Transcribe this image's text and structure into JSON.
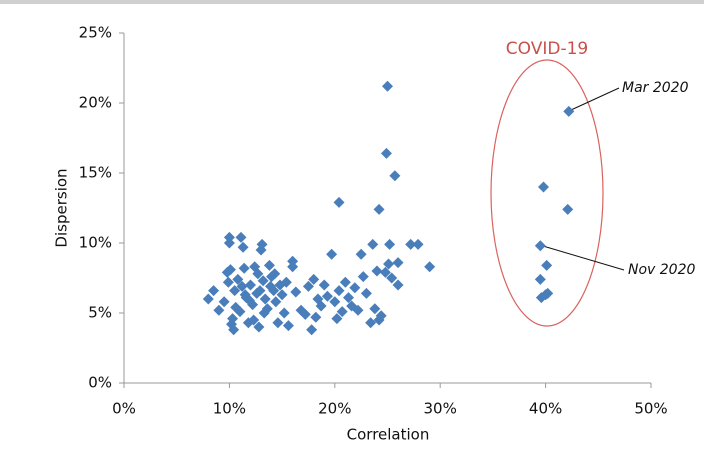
{
  "chart_data": {
    "type": "scatter",
    "x_label": "Correlation",
    "y_label": "Dispersion",
    "annotations": [
      "COVID-19",
      "Mar 2020",
      "Nov 2020"
    ],
    "color": "#4a7ebb",
    "xlim": [
      0,
      50
    ],
    "ylim": [
      0,
      25
    ],
    "xticks": [
      {
        "value": 0,
        "label": "0%"
      },
      {
        "value": 10,
        "label": "10%"
      },
      {
        "value": 20,
        "label": "20%"
      },
      {
        "value": 30,
        "label": "30%"
      },
      {
        "value": 40,
        "label": "40%"
      },
      {
        "value": 50,
        "label": "50%"
      }
    ],
    "yticks": [
      {
        "value": 0,
        "label": "0%"
      },
      {
        "value": 5,
        "label": "5%"
      },
      {
        "value": 10,
        "label": "10%"
      },
      {
        "value": 15,
        "label": "15%"
      },
      {
        "value": 20,
        "label": "20%"
      },
      {
        "value": 25,
        "label": "25%"
      }
    ],
    "x": [
      8,
      8.5,
      9,
      9.5,
      10,
      10,
      10.1,
      10.2,
      10.4,
      10.5,
      10.8,
      11,
      11.1,
      11.3,
      11.4,
      11.6,
      11.8,
      12,
      12.2,
      12.4,
      12.6,
      12.8,
      13,
      13.1,
      13.2,
      13.4,
      13.6,
      13.8,
      14,
      14.2,
      14.4,
      14.6,
      14.8,
      15,
      15.2,
      15.6,
      16,
      16,
      16.3,
      16.8,
      17.2,
      17.5,
      17.8,
      18,
      18.2,
      18.4,
      18.7,
      19,
      19.3,
      19.7,
      20,
      20.2,
      20.4,
      20.7,
      21,
      21.3,
      21.6,
      21.9,
      22.2,
      22.5,
      22.7,
      23,
      23.4,
      23.6,
      23.8,
      24,
      24.2,
      24.4,
      24.8,
      25.1,
      25.2,
      25.4,
      26,
      26,
      27.2,
      27.9,
      29,
      9.8,
      10.6,
      11.2,
      11.9,
      12.3,
      12.7,
      13.3,
      13.9,
      14.3,
      15.4,
      12.9,
      11.5,
      10.3,
      9.9,
      25,
      24.9,
      25.7,
      20.4,
      24.2,
      42.2,
      39.8,
      42.1,
      39.5,
      40.1,
      39.5,
      40,
      39.6,
      40.2
    ],
    "values": [
      6,
      6.6,
      5.2,
      5.8,
      10,
      10.4,
      8.1,
      4.2,
      3.8,
      6.6,
      7.4,
      5.1,
      10.4,
      9.7,
      8.2,
      6.1,
      4.3,
      7,
      5.6,
      8.3,
      6.4,
      4,
      9.5,
      9.9,
      7.3,
      6,
      5.3,
      8.4,
      7.6,
      6.6,
      5.8,
      4.3,
      7,
      6.3,
      5,
      4.1,
      8.7,
      8.3,
      6.5,
      5.2,
      4.9,
      6.9,
      3.8,
      7.4,
      4.7,
      6,
      5.5,
      7,
      6.2,
      9.2,
      5.8,
      4.6,
      6.6,
      5.1,
      7.2,
      6.1,
      5.5,
      6.8,
      5.2,
      9.2,
      7.6,
      6.4,
      4.3,
      9.9,
      5.3,
      8,
      4.5,
      4.8,
      7.9,
      8.5,
      9.9,
      7.5,
      8.6,
      7,
      9.9,
      9.9,
      8.3,
      7.9,
      5.4,
      6.9,
      5.9,
      4.5,
      7.8,
      5,
      6.9,
      7.8,
      7.2,
      6.6,
      6.3,
      4.6,
      7.2,
      21.2,
      16.4,
      14.8,
      12.9,
      12.4,
      19.4,
      14,
      12.4,
      9.8,
      8.4,
      7.4,
      6.3,
      6.1,
      6.4
    ]
  }
}
